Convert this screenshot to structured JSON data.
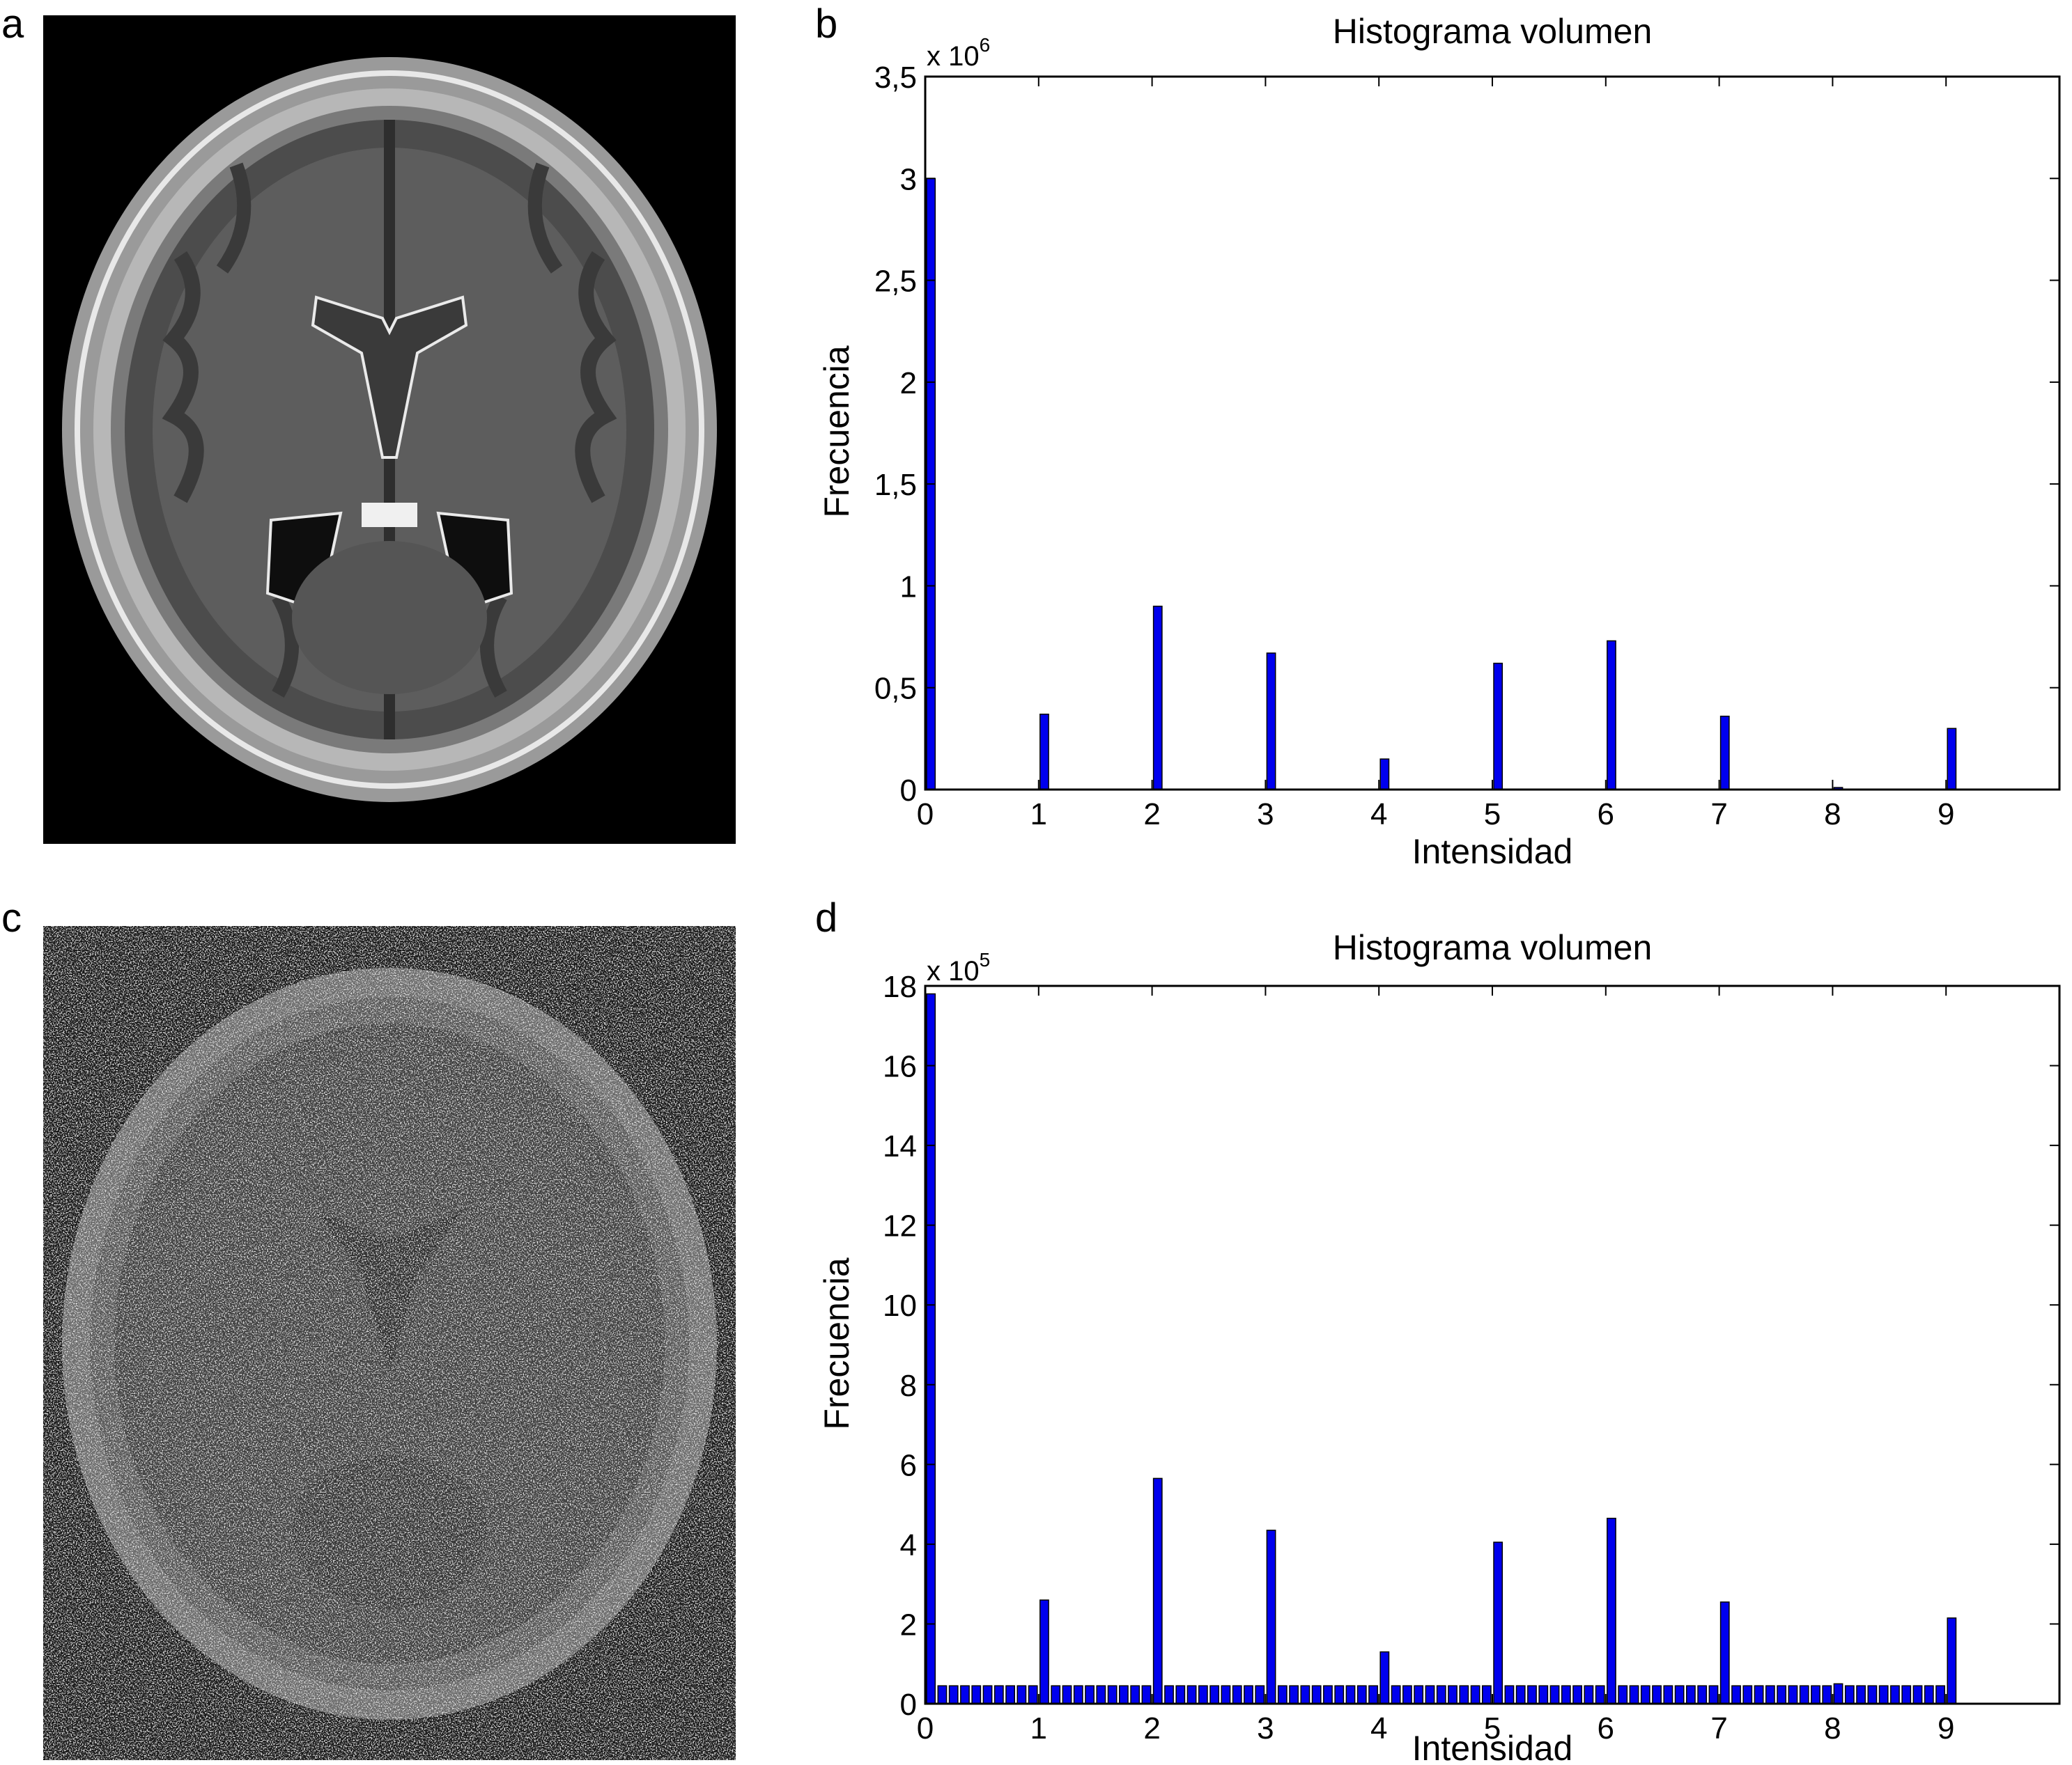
{
  "panels": {
    "a": {
      "letter": "a"
    },
    "b": {
      "letter": "b"
    },
    "c": {
      "letter": "c"
    },
    "d": {
      "letter": "d"
    }
  },
  "colors": {
    "bar": "#0000ee",
    "axis": "#000000",
    "mri_background": "#000000"
  },
  "chart_data": [
    {
      "id": "b",
      "type": "bar",
      "title": "Histograma volumen",
      "xlabel": "Intensidad",
      "ylabel": "Frecuencia",
      "exponent_label": "x 10",
      "exponent_power": "6",
      "xlim": [
        0,
        10
      ],
      "ylim": [
        0,
        3.5
      ],
      "xticks": [
        0,
        1,
        2,
        3,
        4,
        5,
        6,
        7,
        8,
        9
      ],
      "xtick_labels": [
        "0",
        "1",
        "2",
        "3",
        "4",
        "5",
        "6",
        "7",
        "8",
        "9"
      ],
      "yticks": [
        0,
        0.5,
        1,
        1.5,
        2,
        2.5,
        3,
        3.5
      ],
      "ytick_labels": [
        "0",
        "0,5",
        "1",
        "1,5",
        "2",
        "2,5",
        "3",
        "3,5"
      ],
      "grid": false,
      "bar_width": 0.1,
      "series": [
        {
          "x": [
            0,
            1,
            2,
            3,
            4,
            5,
            6,
            7,
            8,
            9
          ],
          "values": [
            3.0,
            0.37,
            0.9,
            0.67,
            0.15,
            0.62,
            0.73,
            0.36,
            0.01,
            0.3
          ]
        }
      ]
    },
    {
      "id": "d",
      "type": "bar",
      "title": "Histograma volumen",
      "xlabel": "Intensidad",
      "ylabel": "Frecuencia",
      "exponent_label": "x 10",
      "exponent_power": "5",
      "xlim": [
        0,
        10
      ],
      "ylim": [
        0,
        18
      ],
      "xticks": [
        0,
        1,
        2,
        3,
        4,
        5,
        6,
        7,
        8,
        9
      ],
      "xtick_labels": [
        "0",
        "1",
        "2",
        "3",
        "4",
        "5",
        "6",
        "7",
        "8",
        "9"
      ],
      "yticks": [
        0,
        2,
        4,
        6,
        8,
        10,
        12,
        14,
        16,
        18
      ],
      "ytick_labels": [
        "0",
        "2",
        "4",
        "6",
        "8",
        "10",
        "12",
        "14",
        "16",
        "18"
      ],
      "grid": false,
      "bar_width": 0.1,
      "series": [
        {
          "x": [
            0,
            0.1,
            0.2,
            0.3,
            0.4,
            0.5,
            0.6,
            0.7,
            0.8,
            0.9,
            1,
            1.1,
            1.2,
            1.3,
            1.4,
            1.5,
            1.6,
            1.7,
            1.8,
            1.9,
            2,
            2.1,
            2.2,
            2.3,
            2.4,
            2.5,
            2.6,
            2.7,
            2.8,
            2.9,
            3,
            3.1,
            3.2,
            3.3,
            3.4,
            3.5,
            3.6,
            3.7,
            3.8,
            3.9,
            4,
            4.1,
            4.2,
            4.3,
            4.4,
            4.5,
            4.6,
            4.7,
            4.8,
            4.9,
            5,
            5.1,
            5.2,
            5.3,
            5.4,
            5.5,
            5.6,
            5.7,
            5.8,
            5.9,
            6,
            6.1,
            6.2,
            6.3,
            6.4,
            6.5,
            6.6,
            6.7,
            6.8,
            6.9,
            7,
            7.1,
            7.2,
            7.3,
            7.4,
            7.5,
            7.6,
            7.7,
            7.8,
            7.9,
            8,
            8.1,
            8.2,
            8.3,
            8.4,
            8.5,
            8.6,
            8.7,
            8.8,
            8.9,
            9
          ],
          "values": [
            17.8,
            0.45,
            0.45,
            0.45,
            0.45,
            0.45,
            0.45,
            0.45,
            0.45,
            0.45,
            2.6,
            0.45,
            0.45,
            0.45,
            0.45,
            0.45,
            0.45,
            0.45,
            0.45,
            0.45,
            5.65,
            0.45,
            0.45,
            0.45,
            0.45,
            0.45,
            0.45,
            0.45,
            0.45,
            0.45,
            4.35,
            0.45,
            0.45,
            0.45,
            0.45,
            0.45,
            0.45,
            0.45,
            0.45,
            0.45,
            1.3,
            0.45,
            0.45,
            0.45,
            0.45,
            0.45,
            0.45,
            0.45,
            0.45,
            0.45,
            4.05,
            0.45,
            0.45,
            0.45,
            0.45,
            0.45,
            0.45,
            0.45,
            0.45,
            0.45,
            4.65,
            0.45,
            0.45,
            0.45,
            0.45,
            0.45,
            0.45,
            0.45,
            0.45,
            0.45,
            2.55,
            0.45,
            0.45,
            0.45,
            0.45,
            0.45,
            0.45,
            0.45,
            0.45,
            0.45,
            0.5,
            0.45,
            0.45,
            0.45,
            0.45,
            0.45,
            0.45,
            0.45,
            0.45,
            0.45,
            2.15
          ]
        }
      ]
    }
  ]
}
